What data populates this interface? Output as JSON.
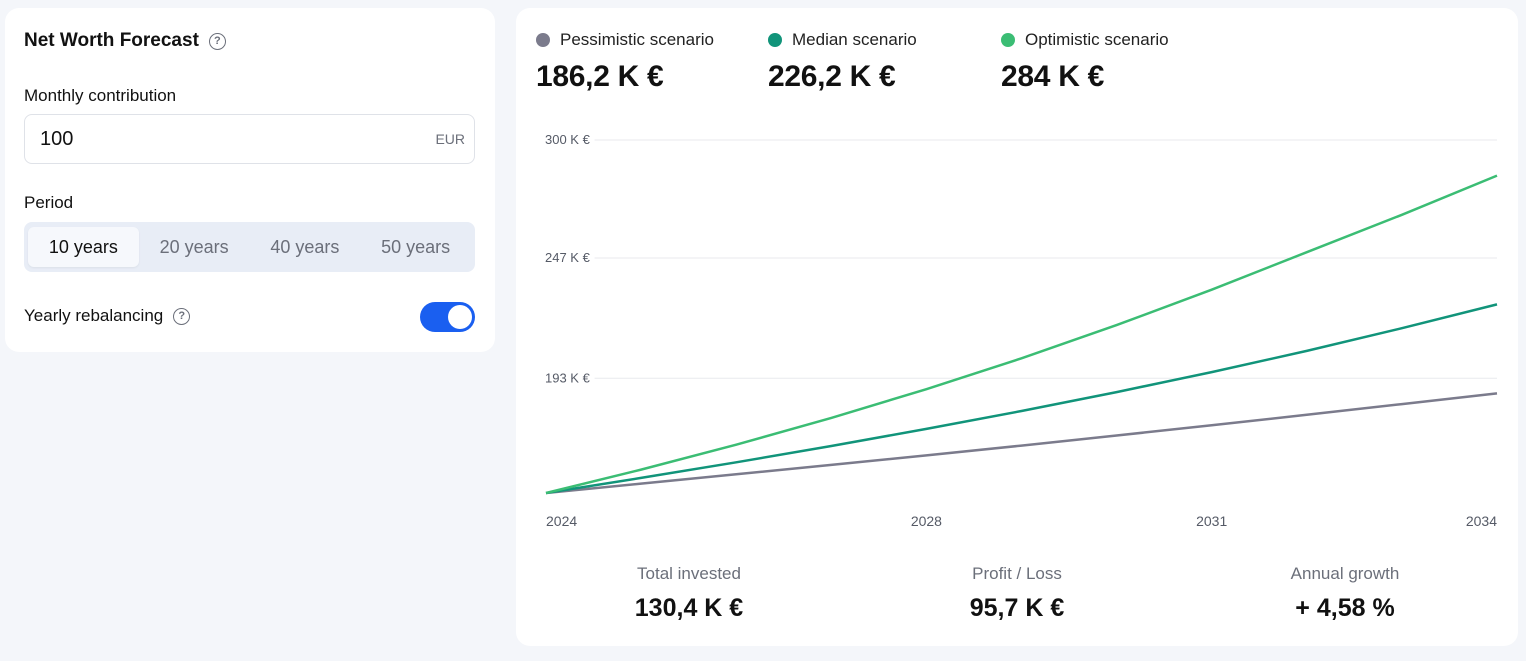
{
  "form": {
    "title": "Net Worth Forecast",
    "contribution_label": "Monthly contribution",
    "contribution_value": "100",
    "contribution_unit": "EUR",
    "period_label": "Period",
    "period_options": [
      "10 years",
      "20 years",
      "40 years",
      "50 years"
    ],
    "period_selected": "10 years",
    "rebalancing_label": "Yearly rebalancing",
    "rebalancing_on": true,
    "help_glyph": "?"
  },
  "scenarios": [
    {
      "name": "Pessimistic scenario",
      "value": "186,2 K €",
      "color": "#7b7b8c"
    },
    {
      "name": "Median scenario",
      "value": "226,2 K €",
      "color": "#11947a"
    },
    {
      "name": "Optimistic scenario",
      "value": "284 K €",
      "color": "#3bbd74"
    }
  ],
  "stats": [
    {
      "label": "Total invested",
      "value": "130,4 K €"
    },
    {
      "label": "Profit / Loss",
      "value": "95,7 K €"
    },
    {
      "label": "Annual growth",
      "value": "+ 4,58 %"
    }
  ],
  "chart_data": {
    "type": "line",
    "x": [
      2024,
      2025,
      2026,
      2027,
      2028,
      2029,
      2030,
      2031,
      2032,
      2033,
      2034
    ],
    "x_ticks": [
      "2024",
      "2028",
      "2031",
      "2034"
    ],
    "y_ticks": [
      {
        "value": 300,
        "label": "300 K €"
      },
      {
        "value": 247,
        "label": "247 K €"
      },
      {
        "value": 193,
        "label": "193 K €"
      }
    ],
    "ylim": [
      141.5,
      300
    ],
    "grid": true,
    "series": [
      {
        "name": "Pessimistic scenario",
        "color": "#7b7b8c",
        "values": [
          141.5,
          145.7,
          149.9,
          154.1,
          158.4,
          162.8,
          167.3,
          171.9,
          176.6,
          181.4,
          186.2
        ]
      },
      {
        "name": "Median scenario",
        "color": "#11947a",
        "values": [
          141.5,
          148.3,
          155.3,
          162.6,
          170.3,
          178.3,
          186.8,
          195.8,
          205.3,
          215.5,
          226.2
        ]
      },
      {
        "name": "Optimistic scenario",
        "color": "#3bbd74",
        "values": [
          141.5,
          152.0,
          163.2,
          175.2,
          188.1,
          202.0,
          216.9,
          232.8,
          249.6,
          266.4,
          284.0
        ]
      }
    ]
  }
}
